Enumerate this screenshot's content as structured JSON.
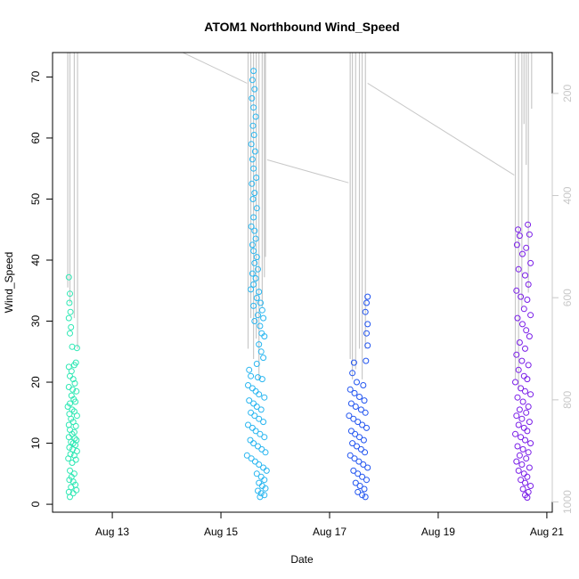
{
  "chart_data": {
    "type": "scatter",
    "title": "ATOM1 Northbound Wind_Speed",
    "xlabel": "Date",
    "ylabel": "Wind_Speed",
    "xlim": [
      11.9,
      21.1
    ],
    "ylim": [
      -1.3,
      74
    ],
    "x_ticks": [
      {
        "value": 13,
        "label": "Aug 13"
      },
      {
        "value": 15,
        "label": "Aug 15"
      },
      {
        "value": 17,
        "label": "Aug 17"
      },
      {
        "value": 19,
        "label": "Aug 19"
      },
      {
        "value": 21,
        "label": "Aug 21"
      }
    ],
    "y_ticks": [
      0,
      10,
      20,
      30,
      40,
      50,
      60,
      70
    ],
    "y2_axis": {
      "label": "",
      "ticks": [
        200,
        400,
        600,
        800,
        1000
      ],
      "lim_top": 120,
      "lim_bottom": 1020,
      "color": "#c8c8c8"
    },
    "legend": "none",
    "grid": false,
    "series": [
      {
        "color": "#2ee8b4",
        "x_range": [
          12.15,
          12.4
        ],
        "points": [
          [
            12.2,
            37.2
          ],
          [
            12.22,
            34.5
          ],
          [
            12.21,
            33
          ],
          [
            12.23,
            31.5
          ],
          [
            12.2,
            30.5
          ],
          [
            12.24,
            29
          ],
          [
            12.22,
            28
          ],
          [
            12.26,
            25.8
          ],
          [
            12.35,
            25.6
          ],
          [
            12.2,
            22.5
          ],
          [
            12.25,
            21.8
          ],
          [
            12.3,
            22.8
          ],
          [
            12.33,
            23.2
          ],
          [
            12.22,
            21
          ],
          [
            12.28,
            20.5
          ],
          [
            12.31,
            19.8
          ],
          [
            12.2,
            19.2
          ],
          [
            12.27,
            18.8
          ],
          [
            12.34,
            18.5
          ],
          [
            12.25,
            17.8
          ],
          [
            12.29,
            17.2
          ],
          [
            12.22,
            16.5
          ],
          [
            12.32,
            16.8
          ],
          [
            12.18,
            16
          ],
          [
            12.26,
            15.5
          ],
          [
            12.3,
            15.2
          ],
          [
            12.21,
            14.8
          ],
          [
            12.35,
            14.5
          ],
          [
            12.24,
            14
          ],
          [
            12.28,
            13.5
          ],
          [
            12.2,
            13
          ],
          [
            12.33,
            12.8
          ],
          [
            12.22,
            12.2
          ],
          [
            12.3,
            11.8
          ],
          [
            12.26,
            11.5
          ],
          [
            12.2,
            11
          ],
          [
            12.31,
            10.8
          ],
          [
            12.34,
            10.5
          ],
          [
            12.24,
            10.2
          ],
          [
            12.28,
            10
          ],
          [
            12.32,
            9.7
          ],
          [
            12.21,
            9.3
          ],
          [
            12.27,
            9
          ],
          [
            12.35,
            8.7
          ],
          [
            12.23,
            8.2
          ],
          [
            12.3,
            8
          ],
          [
            12.19,
            7.5
          ],
          [
            12.33,
            7.3
          ],
          [
            12.26,
            6.8
          ],
          [
            12.22,
            5.5
          ],
          [
            12.3,
            5
          ],
          [
            12.25,
            4.5
          ],
          [
            12.21,
            4
          ],
          [
            12.28,
            3.7
          ],
          [
            12.32,
            3.2
          ],
          [
            12.24,
            2.8
          ],
          [
            12.34,
            2.3
          ],
          [
            12.2,
            2
          ],
          [
            12.28,
            1.8
          ],
          [
            12.22,
            1.2
          ]
        ]
      },
      {
        "color": "#29b6f0",
        "x_range": [
          15.45,
          15.85
        ],
        "points": [
          [
            15.6,
            71
          ],
          [
            15.58,
            69.5
          ],
          [
            15.62,
            68
          ],
          [
            15.57,
            66.5
          ],
          [
            15.6,
            65
          ],
          [
            15.64,
            63.5
          ],
          [
            15.59,
            62
          ],
          [
            15.61,
            60.5
          ],
          [
            15.56,
            59
          ],
          [
            15.63,
            57.8
          ],
          [
            15.58,
            56.5
          ],
          [
            15.6,
            55
          ],
          [
            15.65,
            53.5
          ],
          [
            15.57,
            52.5
          ],
          [
            15.62,
            51
          ],
          [
            15.59,
            50
          ],
          [
            15.66,
            48.5
          ],
          [
            15.6,
            47
          ],
          [
            15.56,
            45.5
          ],
          [
            15.62,
            44.8
          ],
          [
            15.64,
            43.5
          ],
          [
            15.58,
            42.5
          ],
          [
            15.6,
            41.5
          ],
          [
            15.66,
            40.5
          ],
          [
            15.62,
            39.5
          ],
          [
            15.68,
            38.5
          ],
          [
            15.58,
            37.8
          ],
          [
            15.64,
            37
          ],
          [
            15.6,
            36
          ],
          [
            15.55,
            35.2
          ],
          [
            15.7,
            34.8
          ],
          [
            15.66,
            33.8
          ],
          [
            15.73,
            33
          ],
          [
            15.6,
            32.5
          ],
          [
            15.76,
            31.8
          ],
          [
            15.68,
            31
          ],
          [
            15.78,
            30.5
          ],
          [
            15.62,
            30
          ],
          [
            15.72,
            29.2
          ],
          [
            15.75,
            28
          ],
          [
            15.8,
            27.5
          ],
          [
            15.7,
            26.2
          ],
          [
            15.74,
            25
          ],
          [
            15.78,
            24
          ],
          [
            15.66,
            23
          ],
          [
            15.52,
            22
          ],
          [
            15.55,
            21
          ],
          [
            15.68,
            20.8
          ],
          [
            15.76,
            20.5
          ],
          [
            15.5,
            19.5
          ],
          [
            15.58,
            19
          ],
          [
            15.64,
            18.5
          ],
          [
            15.7,
            18
          ],
          [
            15.8,
            17.5
          ],
          [
            15.52,
            17
          ],
          [
            15.6,
            16.5
          ],
          [
            15.66,
            16
          ],
          [
            15.74,
            15.5
          ],
          [
            15.55,
            15
          ],
          [
            15.62,
            14.5
          ],
          [
            15.7,
            14
          ],
          [
            15.78,
            13.5
          ],
          [
            15.5,
            13
          ],
          [
            15.58,
            12.5
          ],
          [
            15.64,
            12
          ],
          [
            15.72,
            11.5
          ],
          [
            15.8,
            11
          ],
          [
            15.54,
            10.5
          ],
          [
            15.6,
            10
          ],
          [
            15.68,
            9.5
          ],
          [
            15.75,
            9
          ],
          [
            15.82,
            8.5
          ],
          [
            15.48,
            8
          ],
          [
            15.56,
            7.5
          ],
          [
            15.63,
            7
          ],
          [
            15.7,
            6.5
          ],
          [
            15.78,
            6
          ],
          [
            15.84,
            5.5
          ],
          [
            15.66,
            5
          ],
          [
            15.74,
            4.5
          ],
          [
            15.8,
            4
          ],
          [
            15.7,
            3.5
          ],
          [
            15.76,
            3
          ],
          [
            15.82,
            2.6
          ],
          [
            15.68,
            2.2
          ],
          [
            15.74,
            1.8
          ],
          [
            15.8,
            1.5
          ],
          [
            15.72,
            1.2
          ]
        ]
      },
      {
        "color": "#2255f0",
        "x_range": [
          17.35,
          17.7
        ],
        "points": [
          [
            17.7,
            34
          ],
          [
            17.68,
            33
          ],
          [
            17.66,
            31.5
          ],
          [
            17.7,
            29.5
          ],
          [
            17.68,
            28
          ],
          [
            17.7,
            26
          ],
          [
            17.67,
            23.5
          ],
          [
            17.45,
            23.2
          ],
          [
            17.42,
            21.5
          ],
          [
            17.5,
            20
          ],
          [
            17.62,
            19.5
          ],
          [
            17.38,
            18.8
          ],
          [
            17.46,
            18.2
          ],
          [
            17.55,
            17.6
          ],
          [
            17.64,
            17
          ],
          [
            17.4,
            16.5
          ],
          [
            17.48,
            16
          ],
          [
            17.58,
            15.5
          ],
          [
            17.66,
            15
          ],
          [
            17.36,
            14.5
          ],
          [
            17.44,
            14
          ],
          [
            17.52,
            13.5
          ],
          [
            17.6,
            13
          ],
          [
            17.68,
            12.5
          ],
          [
            17.4,
            12
          ],
          [
            17.47,
            11.5
          ],
          [
            17.55,
            11
          ],
          [
            17.63,
            10.5
          ],
          [
            17.42,
            10
          ],
          [
            17.5,
            9.5
          ],
          [
            17.58,
            9
          ],
          [
            17.65,
            8.5
          ],
          [
            17.38,
            8
          ],
          [
            17.46,
            7.5
          ],
          [
            17.54,
            7
          ],
          [
            17.62,
            6.5
          ],
          [
            17.7,
            6
          ],
          [
            17.44,
            5.5
          ],
          [
            17.52,
            5
          ],
          [
            17.6,
            4.5
          ],
          [
            17.68,
            4
          ],
          [
            17.48,
            3.5
          ],
          [
            17.56,
            3
          ],
          [
            17.64,
            2.5
          ],
          [
            17.52,
            2
          ],
          [
            17.6,
            1.5
          ],
          [
            17.66,
            1.2
          ]
        ]
      },
      {
        "color": "#7a1ee8",
        "x_range": [
          20.4,
          20.72
        ],
        "points": [
          [
            20.47,
            45
          ],
          [
            20.65,
            45.8
          ],
          [
            20.5,
            44
          ],
          [
            20.68,
            44.2
          ],
          [
            20.45,
            42.5
          ],
          [
            20.62,
            42
          ],
          [
            20.55,
            41
          ],
          [
            20.7,
            39.5
          ],
          [
            20.48,
            38.5
          ],
          [
            20.6,
            37.5
          ],
          [
            20.66,
            36
          ],
          [
            20.44,
            35
          ],
          [
            20.52,
            34
          ],
          [
            20.64,
            33.5
          ],
          [
            20.58,
            32
          ],
          [
            20.7,
            31
          ],
          [
            20.46,
            30.5
          ],
          [
            20.55,
            29.5
          ],
          [
            20.62,
            28.5
          ],
          [
            20.68,
            27.5
          ],
          [
            20.5,
            26.5
          ],
          [
            20.6,
            25.5
          ],
          [
            20.44,
            24.5
          ],
          [
            20.54,
            23.5
          ],
          [
            20.66,
            22.8
          ],
          [
            20.48,
            22
          ],
          [
            20.58,
            21
          ],
          [
            20.64,
            20.5
          ],
          [
            20.42,
            20
          ],
          [
            20.52,
            19
          ],
          [
            20.6,
            18.5
          ],
          [
            20.7,
            18
          ],
          [
            20.46,
            17.5
          ],
          [
            20.56,
            16.8
          ],
          [
            20.66,
            16
          ],
          [
            20.5,
            15.5
          ],
          [
            20.62,
            15
          ],
          [
            20.44,
            14.5
          ],
          [
            20.54,
            14
          ],
          [
            20.68,
            13.5
          ],
          [
            20.48,
            13
          ],
          [
            20.58,
            12.5
          ],
          [
            20.64,
            12
          ],
          [
            20.42,
            11.5
          ],
          [
            20.52,
            11
          ],
          [
            20.6,
            10.5
          ],
          [
            20.7,
            10
          ],
          [
            20.46,
            9.5
          ],
          [
            20.56,
            9
          ],
          [
            20.66,
            8.5
          ],
          [
            20.5,
            8
          ],
          [
            20.62,
            7.5
          ],
          [
            20.44,
            7
          ],
          [
            20.54,
            6.5
          ],
          [
            20.68,
            6
          ],
          [
            20.48,
            5.5
          ],
          [
            20.58,
            5
          ],
          [
            20.64,
            4.5
          ],
          [
            20.52,
            4
          ],
          [
            20.6,
            3.5
          ],
          [
            20.7,
            3
          ],
          [
            20.56,
            2.5
          ],
          [
            20.66,
            2
          ],
          [
            20.6,
            1.5
          ],
          [
            20.64,
            1.1
          ]
        ]
      }
    ],
    "y2_series": {
      "color": "#c8c8c8",
      "spikes": [
        {
          "x": 12.18,
          "bottom": 580
        },
        {
          "x": 12.22,
          "bottom": 610
        },
        {
          "x": 12.3,
          "bottom": 640
        },
        {
          "x": 12.36,
          "bottom": 700
        },
        {
          "x": 15.5,
          "bottom": 700
        },
        {
          "x": 15.55,
          "bottom": 640
        },
        {
          "x": 15.6,
          "bottom": 720
        },
        {
          "x": 15.65,
          "bottom": 680
        },
        {
          "x": 15.7,
          "bottom": 760
        },
        {
          "x": 15.76,
          "bottom": 620
        },
        {
          "x": 15.8,
          "bottom": 560
        },
        {
          "x": 15.82,
          "bottom": 520
        },
        {
          "x": 17.38,
          "bottom": 720
        },
        {
          "x": 17.42,
          "bottom": 760
        },
        {
          "x": 17.48,
          "bottom": 740
        },
        {
          "x": 17.55,
          "bottom": 700
        },
        {
          "x": 17.6,
          "bottom": 760
        },
        {
          "x": 17.66,
          "bottom": 700
        },
        {
          "x": 20.42,
          "bottom": 760
        },
        {
          "x": 20.48,
          "bottom": 780
        },
        {
          "x": 20.54,
          "bottom": 620
        },
        {
          "x": 20.58,
          "bottom": 260
        },
        {
          "x": 20.62,
          "bottom": 340
        },
        {
          "x": 20.66,
          "bottom": 590
        },
        {
          "x": 20.72,
          "bottom": 230
        }
      ],
      "connectors": [
        [
          [
            12.4,
            120
          ],
          [
            14.3,
            120
          ],
          [
            15.48,
            180
          ]
        ],
        [
          [
            15.85,
            330
          ],
          [
            17.35,
            375
          ]
        ],
        [
          [
            17.7,
            180
          ],
          [
            20.4,
            360
          ]
        ]
      ]
    }
  }
}
